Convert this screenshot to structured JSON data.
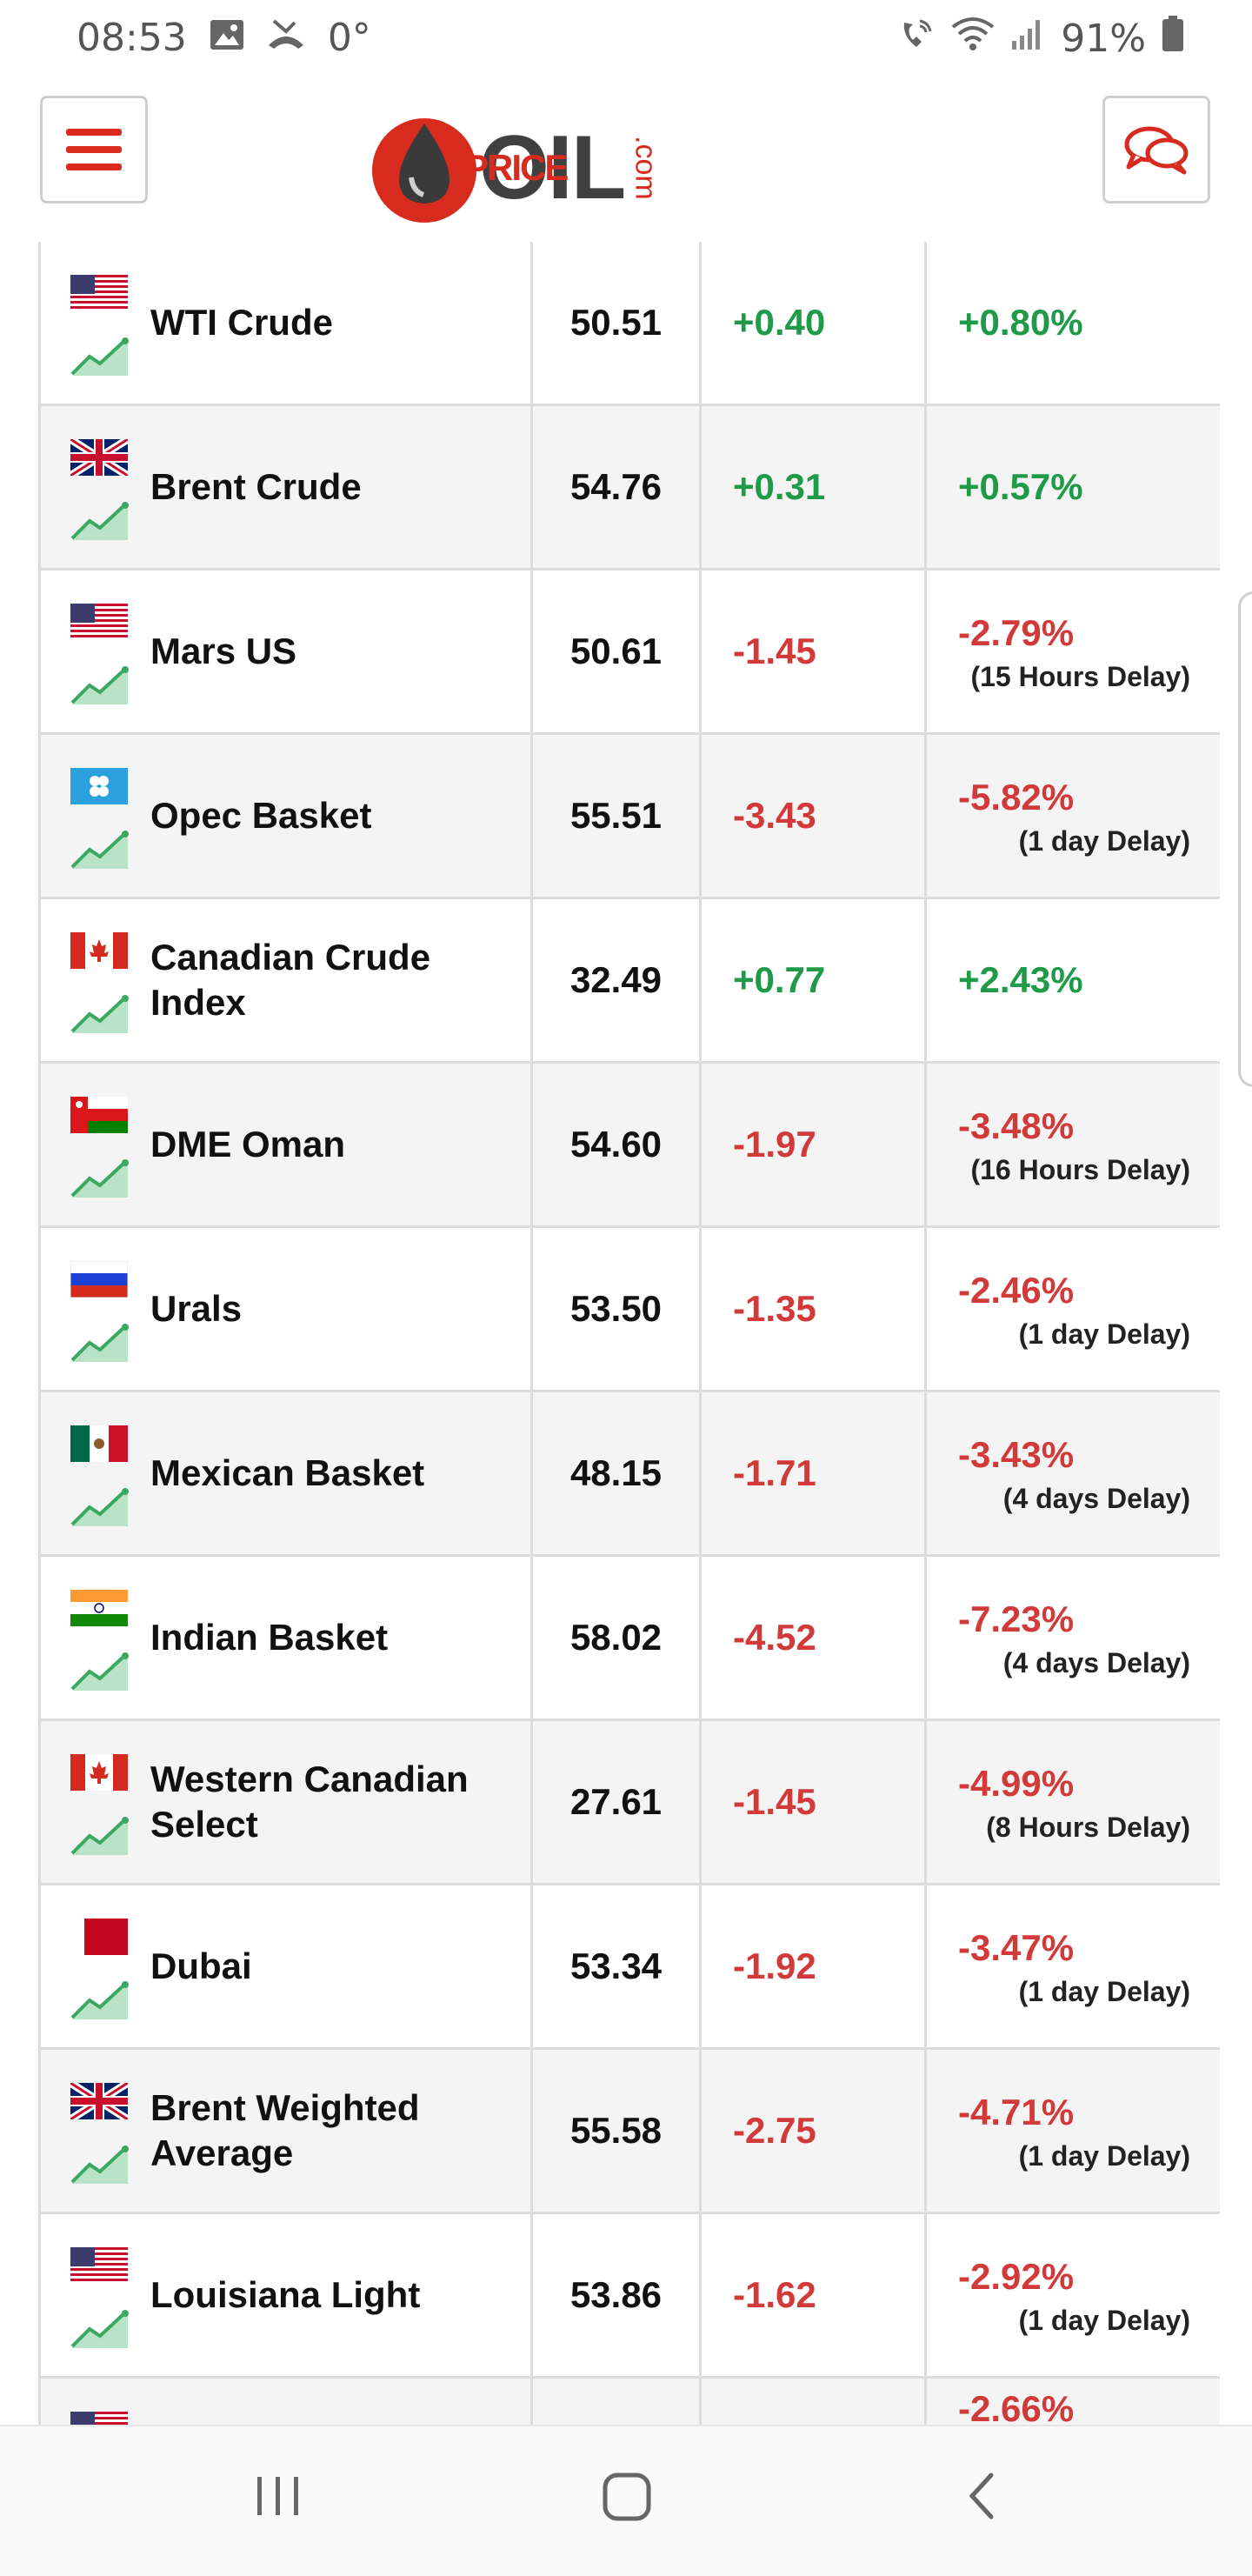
{
  "status_bar": {
    "time": "08:53",
    "temp": "0°",
    "battery": "91%",
    "icons": [
      "image-icon",
      "missed-call-icon",
      "wifi-call-icon",
      "wifi-icon",
      "signal-icon",
      "battery-icon"
    ]
  },
  "header": {
    "logo_oil": "OIL",
    "logo_price": "PRICE",
    "logo_com": ".com",
    "menu_icon": "hamburger-menu-icon",
    "chat_icon": "chat-bubbles-icon"
  },
  "colors": {
    "brand_red": "#d62b1e",
    "up": "#1e9a48",
    "down": "#d23a3a"
  },
  "rows": [
    {
      "name": "WTI Crude",
      "flag": "us",
      "price": "50.51",
      "change": "+0.40",
      "percent": "+0.80%",
      "delay": "",
      "dir": "up"
    },
    {
      "name": "Brent Crude",
      "flag": "uk",
      "price": "54.76",
      "change": "+0.31",
      "percent": "+0.57%",
      "delay": "",
      "dir": "up"
    },
    {
      "name": "Mars US",
      "flag": "us",
      "price": "50.61",
      "change": "-1.45",
      "percent": "-2.79%",
      "delay": "(15 Hours Delay)",
      "dir": "down"
    },
    {
      "name": "Opec Basket",
      "flag": "opec",
      "price": "55.51",
      "change": "-3.43",
      "percent": "-5.82%",
      "delay": "(1 day Delay)",
      "dir": "down"
    },
    {
      "name": "Canadian Crude Index",
      "flag": "ca",
      "price": "32.49",
      "change": "+0.77",
      "percent": "+2.43%",
      "delay": "",
      "dir": "up"
    },
    {
      "name": "DME Oman",
      "flag": "om",
      "price": "54.60",
      "change": "-1.97",
      "percent": "-3.48%",
      "delay": "(16 Hours Delay)",
      "dir": "down"
    },
    {
      "name": "Urals",
      "flag": "ru",
      "price": "53.50",
      "change": "-1.35",
      "percent": "-2.46%",
      "delay": "(1 day Delay)",
      "dir": "down"
    },
    {
      "name": "Mexican Basket",
      "flag": "mx",
      "price": "48.15",
      "change": "-1.71",
      "percent": "-3.43%",
      "delay": "(4 days Delay)",
      "dir": "down"
    },
    {
      "name": "Indian Basket",
      "flag": "in",
      "price": "58.02",
      "change": "-4.52",
      "percent": "-7.23%",
      "delay": "(4 days Delay)",
      "dir": "down"
    },
    {
      "name": "Western Canadian Select",
      "flag": "ca",
      "price": "27.61",
      "change": "-1.45",
      "percent": "-4.99%",
      "delay": "(8 Hours Delay)",
      "dir": "down"
    },
    {
      "name": "Dubai",
      "flag": "dubai",
      "price": "53.34",
      "change": "-1.92",
      "percent": "-3.47%",
      "delay": "(1 day Delay)",
      "dir": "down"
    },
    {
      "name": "Brent Weighted Average",
      "flag": "uk",
      "price": "55.58",
      "change": "-2.75",
      "percent": "-4.71%",
      "delay": "(1 day Delay)",
      "dir": "down"
    },
    {
      "name": "Louisiana Light",
      "flag": "us",
      "price": "53.86",
      "change": "-1.62",
      "percent": "-2.92%",
      "delay": "(1 day Delay)",
      "dir": "down"
    },
    {
      "name": "",
      "flag": "us",
      "price": "",
      "change": "",
      "percent": "-2.66%",
      "delay": "",
      "dir": "down"
    }
  ],
  "nav": {
    "recent_icon": "recent-apps-icon",
    "home_icon": "home-icon",
    "back_icon": "back-icon"
  }
}
